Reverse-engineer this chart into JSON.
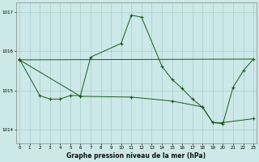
{
  "bg_color": "#cce8e8",
  "grid_color": "#aacccc",
  "line_color": "#1a5c1a",
  "title": "Graphe pression niveau de la mer (hPa)",
  "yticks": [
    1014,
    1015,
    1016,
    1017
  ],
  "xlim": [
    -0.3,
    23.3
  ],
  "ylim": [
    1013.65,
    1017.25
  ],
  "line1_x": [
    0,
    2,
    3,
    4,
    5,
    6,
    7,
    10,
    11,
    12,
    14,
    15,
    16,
    17,
    18,
    19,
    20,
    21,
    22,
    23
  ],
  "line1_y": [
    1015.8,
    1014.87,
    1014.78,
    1014.78,
    1014.87,
    1014.87,
    1015.85,
    1016.2,
    1016.92,
    1016.87,
    1015.62,
    1015.28,
    1015.05,
    1014.78,
    1014.57,
    1014.18,
    1014.15,
    1015.08,
    1015.5,
    1015.8
  ],
  "line2_x": [
    0,
    6,
    11,
    15,
    18,
    19,
    20,
    23
  ],
  "line2_y": [
    1015.78,
    1014.85,
    1014.83,
    1014.73,
    1014.58,
    1014.18,
    1014.18,
    1014.28
  ],
  "line3_x": [
    0,
    23
  ],
  "line3_y": [
    1015.78,
    1015.8
  ]
}
